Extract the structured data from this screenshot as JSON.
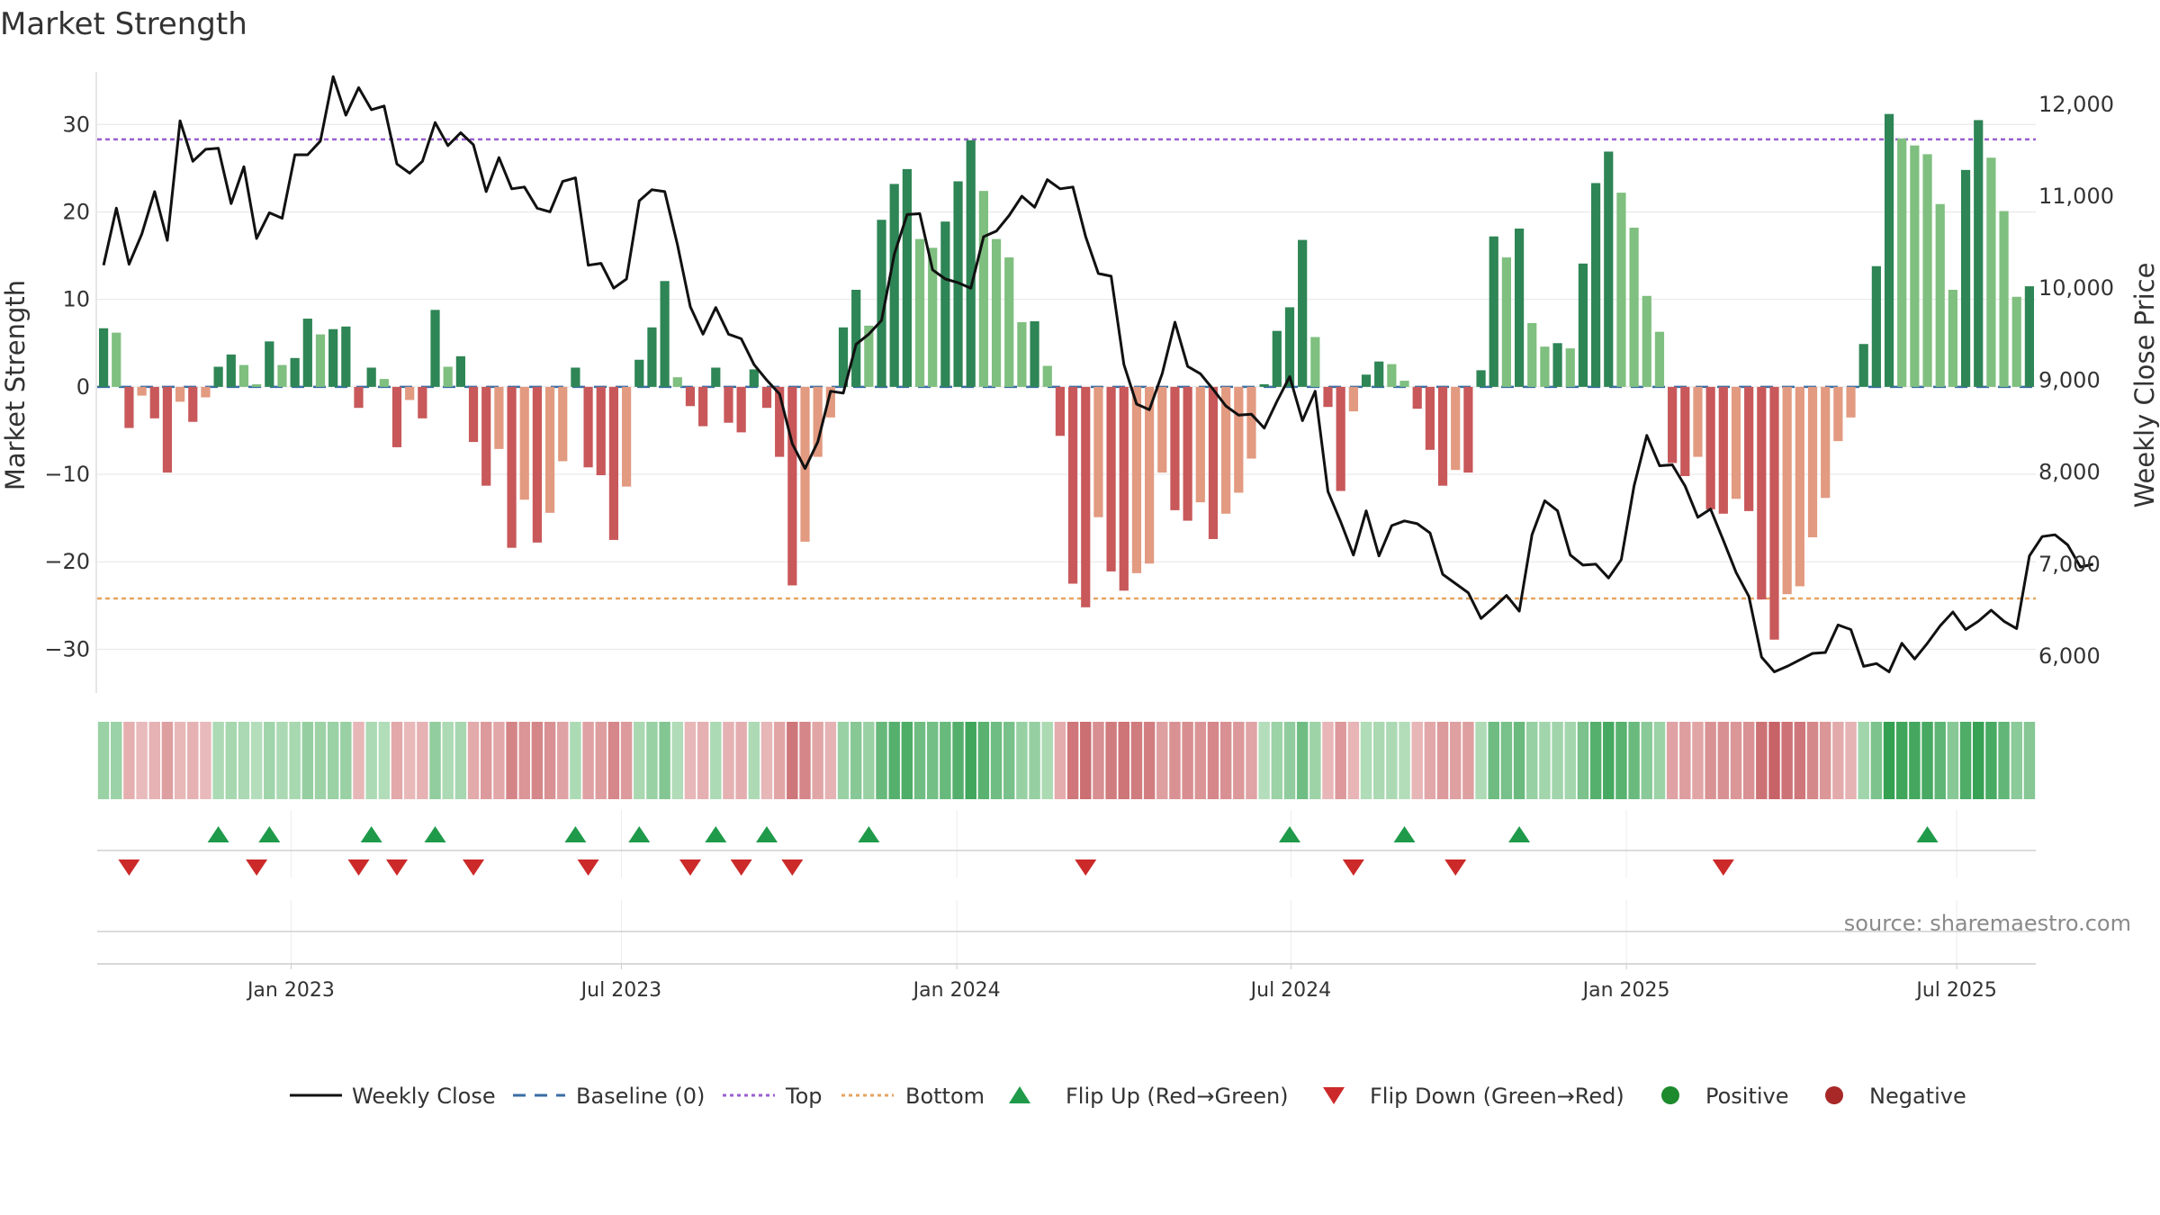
{
  "chart_data": {
    "type": "bar+line",
    "title": "Market Strength",
    "ylabel_left": "Market Strength",
    "ylabel_right": "Weekly Close Price",
    "y_left_range": [
      -35,
      36
    ],
    "y_left_ticks": [
      "−30",
      "−20",
      "−10",
      "0",
      "10",
      "20",
      "30"
    ],
    "y_left_tick_values": [
      -30,
      -20,
      -10,
      0,
      10,
      20,
      30
    ],
    "y_right_range": [
      5600,
      12350
    ],
    "y_right_ticks": [
      "6,000",
      "7,000",
      "8,000",
      "9,000",
      "10,000",
      "11,000",
      "12,000"
    ],
    "y_right_tick_values": [
      6000,
      7000,
      8000,
      9000,
      10000,
      11000,
      12000
    ],
    "x_tick_labels": [
      "Jan 2023",
      "Jul 2023",
      "Jan 2024",
      "Jul 2024",
      "Jan 2025",
      "Jul 2025"
    ],
    "x_tick_weeks": [
      14.7,
      40.6,
      66.9,
      93.1,
      119.4,
      145.3
    ],
    "top_line": 28.3,
    "bottom_line": -24.2,
    "baseline": 0,
    "strength": [
      6.7,
      6.2,
      -4.7,
      -1.0,
      -3.6,
      -9.8,
      -1.7,
      -4.0,
      -1.2,
      2.3,
      3.7,
      2.5,
      0.3,
      5.2,
      2.5,
      3.3,
      7.8,
      6.0,
      6.6,
      6.9,
      -2.4,
      2.2,
      0.9,
      -6.9,
      -1.5,
      -3.6,
      8.8,
      2.3,
      3.5,
      -6.3,
      -11.3,
      -7.1,
      -18.4,
      -12.9,
      -17.8,
      -14.4,
      -8.5,
      2.2,
      -9.2,
      -10.1,
      -17.5,
      -11.4,
      3.1,
      6.8,
      12.1,
      1.1,
      -2.2,
      -4.5,
      2.2,
      -4.1,
      -5.2,
      2.0,
      -2.4,
      -8.0,
      -22.7,
      -17.7,
      -8.0,
      -3.5,
      6.8,
      11.1,
      7.0,
      19.1,
      23.2,
      24.9,
      16.9,
      15.9,
      18.9,
      23.5,
      28.2,
      22.4,
      16.9,
      14.8,
      7.4,
      7.5,
      2.4,
      -5.6,
      -22.5,
      -25.2,
      -14.9,
      -21.1,
      -23.3,
      -21.3,
      -20.2,
      -9.8,
      -14.1,
      -15.3,
      -13.2,
      -17.4,
      -14.5,
      -12.1,
      -8.2,
      0.3,
      6.4,
      9.1,
      16.8,
      5.7,
      -2.3,
      -11.9,
      -2.8,
      1.4,
      2.9,
      2.6,
      0.7,
      -2.5,
      -7.2,
      -11.3,
      -9.5,
      -9.8,
      1.9,
      17.2,
      14.8,
      18.1,
      7.3,
      4.6,
      5.0,
      4.4,
      14.1,
      23.3,
      26.9,
      22.2,
      18.2,
      10.4,
      6.3,
      -8.7,
      -10.2,
      -8.0,
      -14.0,
      -14.5,
      -12.8,
      -14.2,
      -24.3,
      -28.9,
      -23.7,
      -22.8,
      -17.2,
      -12.7,
      -6.2,
      -3.5,
      4.9,
      13.8,
      31.2,
      28.4,
      27.6,
      26.6,
      20.9,
      11.1,
      24.8,
      30.5,
      26.2,
      20.1,
      10.3,
      11.5
    ],
    "weekly_close": [
      10250,
      10870,
      10260,
      10590,
      11050,
      10520,
      11820,
      11380,
      11510,
      11520,
      10920,
      11320,
      10540,
      10820,
      10760,
      11450,
      11450,
      11600,
      12300,
      11880,
      12180,
      11940,
      11980,
      11350,
      11250,
      11380,
      11800,
      11550,
      11690,
      11560,
      11050,
      11420,
      11080,
      11100,
      10870,
      10830,
      11160,
      11200,
      10250,
      10270,
      10000,
      10100,
      10950,
      11070,
      11050,
      10470,
      9800,
      9500,
      9790,
      9500,
      9450,
      9170,
      9000,
      8850,
      8310,
      8040,
      8330,
      8880,
      8860,
      9390,
      9500,
      9650,
      10370,
      10800,
      10810,
      10200,
      10100,
      10060,
      10000,
      10560,
      10620,
      10790,
      11000,
      10880,
      11180,
      11080,
      11100,
      10560,
      10160,
      10130,
      9170,
      8740,
      8680,
      9070,
      9630,
      9150,
      9070,
      8900,
      8720,
      8620,
      8630,
      8480,
      8770,
      9040,
      8560,
      8880,
      7790,
      7460,
      7100,
      7580,
      7090,
      7420,
      7470,
      7440,
      7340,
      6890,
      6790,
      6690,
      6410,
      6530,
      6660,
      6490,
      7320,
      7690,
      7580,
      7100,
      6990,
      7000,
      6850,
      7050,
      7850,
      8400,
      8070,
      8080,
      7850,
      7510,
      7600,
      7260,
      6910,
      6650,
      5990,
      5830,
      5890,
      5960,
      6030,
      6040,
      6340,
      6290,
      5890,
      5920,
      5830,
      6140,
      5970,
      6140,
      6330,
      6480,
      6290,
      6380,
      6500,
      6380,
      6300,
      7090,
      7300,
      7320,
      7210,
      6970,
      7000
    ],
    "flip_up_weeks": [
      9,
      13,
      21,
      26,
      37,
      42,
      48,
      52,
      60,
      93,
      102,
      111,
      143
    ],
    "flip_down_weeks": [
      2,
      12,
      20,
      23,
      29,
      38,
      46,
      50,
      54,
      77,
      98,
      106,
      127
    ],
    "legend": {
      "weekly_close": "Weekly Close",
      "baseline": "Baseline (0)",
      "top": "Top",
      "bottom": "Bottom",
      "flip_up": "Flip Up (Red→Green)",
      "flip_down": "Flip Down (Green→Red)",
      "positive": "Positive",
      "negative": "Negative"
    },
    "source": "source: sharemaestro.com",
    "colors": {
      "pos_strong": "#2e8555",
      "pos_weak": "#7fbf7f",
      "neg_strong": "#c8585a",
      "neg_weak": "#e29a80",
      "line": "#111111",
      "baseline": "#3a6ea5",
      "top": "#9a5fd0",
      "bottom": "#e6a460",
      "flip_up": "#1f9a4a",
      "flip_down": "#cc2a2a",
      "positive_dot": "#1e8a2e",
      "negative_dot": "#a82828"
    }
  }
}
